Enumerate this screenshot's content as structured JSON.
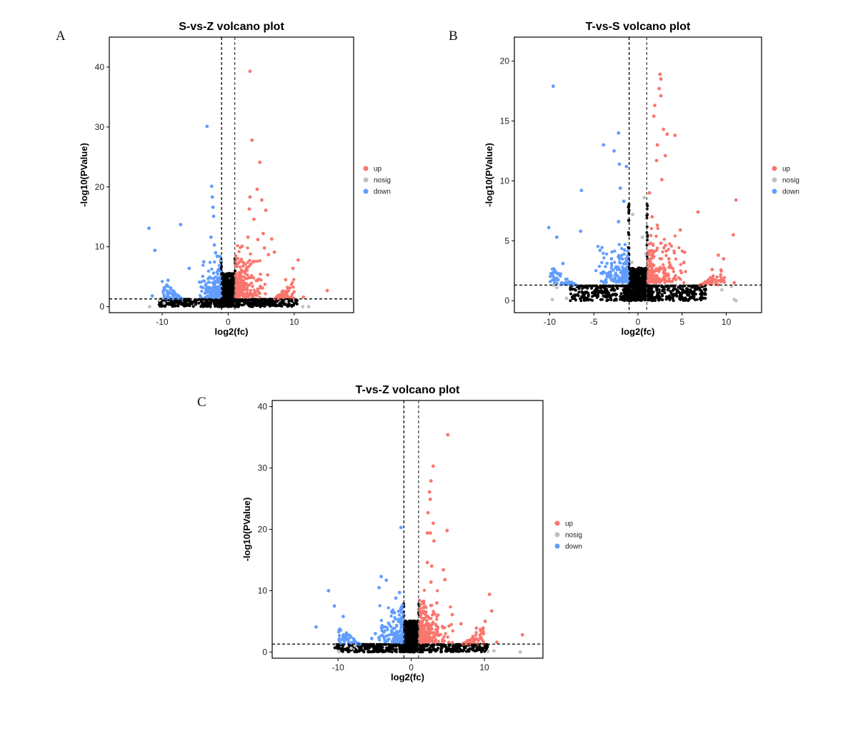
{
  "panel_letters": [
    "A",
    "B",
    "C"
  ],
  "colors": {
    "up": "#f8766d",
    "nosig": "#c0c0c0",
    "down": "#619cff",
    "base": "#000000"
  },
  "chart_data": [
    {
      "type": "scatter",
      "title": "S-vs-Z volcano plot",
      "xlabel": "log2(fc)",
      "ylabel": "-log10(PValue)",
      "xlim": [
        -18,
        19
      ],
      "ylim": [
        -1,
        45
      ],
      "xticks": [
        -10,
        0,
        10
      ],
      "yticks": [
        0,
        10,
        20,
        30,
        40
      ],
      "grid": false,
      "legend_position": "right",
      "legend": [
        "up",
        "nosig",
        "down"
      ],
      "thresholds": {
        "x": [
          -1,
          1
        ],
        "y": 1.3
      },
      "series": [
        {
          "name": "up",
          "points": [
            [
              3.3,
              39.3
            ],
            [
              3.6,
              27.8
            ],
            [
              4.8,
              24.1
            ],
            [
              4.4,
              19.6
            ],
            [
              5.1,
              17.8
            ],
            [
              3.3,
              18.3
            ],
            [
              5.7,
              16.1
            ],
            [
              3.2,
              16.3
            ],
            [
              3.9,
              14.6
            ],
            [
              5.3,
              12.2
            ],
            [
              4.5,
              11.2
            ],
            [
              6.6,
              11.3
            ],
            [
              3.0,
              11.6
            ],
            [
              2.1,
              10.1
            ],
            [
              5.5,
              9.8
            ],
            [
              7.0,
              9.1
            ],
            [
              6.1,
              8.7
            ],
            [
              10.6,
              7.8
            ],
            [
              9.8,
              6.4
            ],
            [
              8.7,
              4.5
            ],
            [
              15.0,
              2.7
            ],
            [
              11.4,
              1.6
            ],
            [
              4.6,
              4.6
            ],
            [
              2.8,
              6.5
            ],
            [
              3.8,
              7.5
            ],
            [
              6.0,
              5.3
            ],
            [
              2.4,
              3.8
            ],
            [
              5.2,
              3.1
            ]
          ]
        },
        {
          "name": "down",
          "points": [
            [
              -3.2,
              30.1
            ],
            [
              -2.5,
              20.1
            ],
            [
              -2.4,
              18.3
            ],
            [
              -2.3,
              16.6
            ],
            [
              -2.2,
              15.1
            ],
            [
              -7.2,
              13.7
            ],
            [
              -12.0,
              13.1
            ],
            [
              -11.1,
              9.4
            ],
            [
              -2.1,
              10.3
            ],
            [
              -2.6,
              11.6
            ],
            [
              -1.9,
              9.0
            ],
            [
              -1.6,
              8.4
            ],
            [
              -3.7,
              7.5
            ],
            [
              -5.9,
              6.4
            ],
            [
              -9.1,
              4.4
            ],
            [
              -11.5,
              1.8
            ],
            [
              -2.8,
              4.9
            ],
            [
              -4.1,
              3.3
            ],
            [
              -2.2,
              5.6
            ]
          ]
        },
        {
          "name": "nosig",
          "points": [
            [
              -11.9,
              0.0
            ],
            [
              -9.7,
              0.6
            ],
            [
              11.3,
              0.0
            ],
            [
              12.2,
              0.0
            ],
            [
              -10.4,
              1.1
            ],
            [
              8.8,
              0.9
            ]
          ]
        }
      ]
    },
    {
      "type": "scatter",
      "title": "T-vs-S volcano plot",
      "xlabel": "log2(fc)",
      "ylabel": "-log10(PValue)",
      "xlim": [
        -14,
        14
      ],
      "ylim": [
        -1,
        22
      ],
      "xticks": [
        -10,
        -5,
        0,
        5,
        10
      ],
      "yticks": [
        0,
        5,
        10,
        15,
        20
      ],
      "grid": false,
      "legend_position": "right",
      "legend": [
        "up",
        "nosig",
        "down"
      ],
      "thresholds": {
        "x": [
          -1,
          1
        ],
        "y": 1.3
      },
      "series": [
        {
          "name": "up",
          "points": [
            [
              2.5,
              18.9
            ],
            [
              2.6,
              18.5
            ],
            [
              2.4,
              17.7
            ],
            [
              2.6,
              17.1
            ],
            [
              1.9,
              16.3
            ],
            [
              1.8,
              15.4
            ],
            [
              2.9,
              14.3
            ],
            [
              3.3,
              13.9
            ],
            [
              4.2,
              13.8
            ],
            [
              2.2,
              13.0
            ],
            [
              3.1,
              12.1
            ],
            [
              2.1,
              11.7
            ],
            [
              2.7,
              10.1
            ],
            [
              11.1,
              8.4
            ],
            [
              6.8,
              7.4
            ],
            [
              4.8,
              5.9
            ],
            [
              10.8,
              5.5
            ],
            [
              1.6,
              7.0
            ],
            [
              2.2,
              6.3
            ],
            [
              9.7,
              3.5
            ],
            [
              9.1,
              3.8
            ],
            [
              3.5,
              3.5
            ],
            [
              3.0,
              2.5
            ],
            [
              5.2,
              3.2
            ],
            [
              8.4,
              2.6
            ],
            [
              2.6,
              4.8
            ],
            [
              1.3,
              9.0
            ],
            [
              10.9,
              1.5
            ]
          ]
        },
        {
          "name": "down",
          "points": [
            [
              -9.6,
              17.9
            ],
            [
              -2.2,
              14.0
            ],
            [
              -3.9,
              13.0
            ],
            [
              -2.7,
              12.5
            ],
            [
              -2.1,
              11.4
            ],
            [
              -1.3,
              11.2
            ],
            [
              -6.4,
              9.2
            ],
            [
              -10.1,
              6.1
            ],
            [
              -6.5,
              5.8
            ],
            [
              -9.2,
              5.3
            ],
            [
              -2.2,
              6.6
            ],
            [
              -4.3,
              4.2
            ],
            [
              -8.5,
              3.1
            ],
            [
              -3.0,
              3.5
            ],
            [
              -1.6,
              8.3
            ],
            [
              -2.0,
              9.4
            ]
          ]
        },
        {
          "name": "nosig",
          "points": [
            [
              -9.6,
              1.3
            ],
            [
              -9.2,
              1.1
            ],
            [
              -8.1,
              0.2
            ],
            [
              -9.7,
              0.1
            ],
            [
              10.9,
              0.1
            ],
            [
              11.1,
              0.0
            ],
            [
              9.5,
              0.9
            ],
            [
              10.6,
              1.2
            ],
            [
              -0.6,
              7.2
            ],
            [
              0.5,
              5.3
            ],
            [
              0.9,
              3.9
            ],
            [
              -0.7,
              3.2
            ],
            [
              0.7,
              8.6
            ]
          ]
        }
      ]
    },
    {
      "type": "scatter",
      "title": "T-vs-Z volcano plot",
      "xlabel": "log2(fc)",
      "ylabel": "-log10(PValue)",
      "xlim": [
        -19,
        18
      ],
      "ylim": [
        -1,
        41
      ],
      "xticks": [
        -10,
        0,
        10
      ],
      "yticks": [
        0,
        10,
        20,
        30,
        40
      ],
      "grid": false,
      "legend_position": "right",
      "legend": [
        "up",
        "nosig",
        "down"
      ],
      "thresholds": {
        "x": [
          -1,
          1
        ],
        "y": 1.3
      },
      "series": [
        {
          "name": "up",
          "points": [
            [
              5.0,
              35.4
            ],
            [
              3.0,
              30.3
            ],
            [
              2.7,
              27.9
            ],
            [
              2.5,
              26.1
            ],
            [
              2.6,
              24.9
            ],
            [
              2.3,
              22.7
            ],
            [
              3.0,
              21.0
            ],
            [
              2.2,
              19.4
            ],
            [
              2.6,
              19.4
            ],
            [
              4.9,
              19.8
            ],
            [
              3.1,
              18.1
            ],
            [
              2.2,
              14.6
            ],
            [
              2.8,
              14.0
            ],
            [
              4.4,
              13.4
            ],
            [
              4.6,
              11.8
            ],
            [
              2.7,
              11.4
            ],
            [
              10.7,
              9.4
            ],
            [
              11.0,
              6.7
            ],
            [
              10.1,
              5.0
            ],
            [
              8.9,
              3.9
            ],
            [
              15.2,
              2.8
            ],
            [
              11.7,
              1.6
            ],
            [
              3.5,
              8.0
            ],
            [
              5.6,
              6.1
            ],
            [
              2.1,
              5.8
            ],
            [
              6.8,
              4.6
            ]
          ]
        },
        {
          "name": "down",
          "points": [
            [
              -1.4,
              20.3
            ],
            [
              -4.1,
              12.3
            ],
            [
              -3.4,
              11.7
            ],
            [
              -4.4,
              10.5
            ],
            [
              -11.3,
              10.0
            ],
            [
              -10.5,
              7.5
            ],
            [
              -13.0,
              4.1
            ],
            [
              -9.3,
              5.8
            ],
            [
              -4.9,
              3.0
            ],
            [
              -2.1,
              8.8
            ],
            [
              -2.3,
              6.4
            ],
            [
              -8.6,
              2.1
            ],
            [
              -5.4,
              2.2
            ],
            [
              -1.6,
              9.7
            ]
          ]
        },
        {
          "name": "nosig",
          "points": [
            [
              -9.9,
              0.1
            ],
            [
              -8.2,
              0.6
            ],
            [
              11.3,
              0.2
            ],
            [
              14.9,
              0.0
            ],
            [
              9.7,
              1.1
            ],
            [
              10.5,
              0.1
            ],
            [
              -10.5,
              1.2
            ],
            [
              -7.7,
              1.1
            ]
          ]
        }
      ]
    }
  ]
}
